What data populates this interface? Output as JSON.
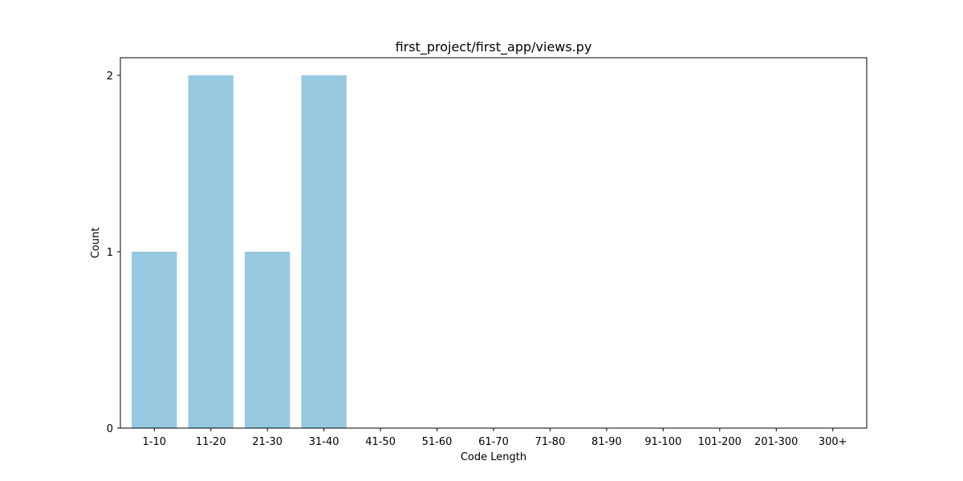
{
  "chart_data": {
    "type": "bar",
    "title": "first_project/first_app/views.py",
    "xlabel": "Code Length",
    "ylabel": "Count",
    "categories": [
      "1-10",
      "11-20",
      "21-30",
      "31-40",
      "41-50",
      "51-60",
      "61-70",
      "71-80",
      "81-90",
      "91-100",
      "101-200",
      "201-300",
      "300+"
    ],
    "values": [
      1,
      2,
      1,
      2,
      0,
      0,
      0,
      0,
      0,
      0,
      0,
      0,
      0
    ],
    "ylim": [
      0,
      2.1
    ],
    "yticks": [
      0,
      1,
      2
    ],
    "bar_color": "#96c9df",
    "grid": false,
    "legend": "none"
  }
}
